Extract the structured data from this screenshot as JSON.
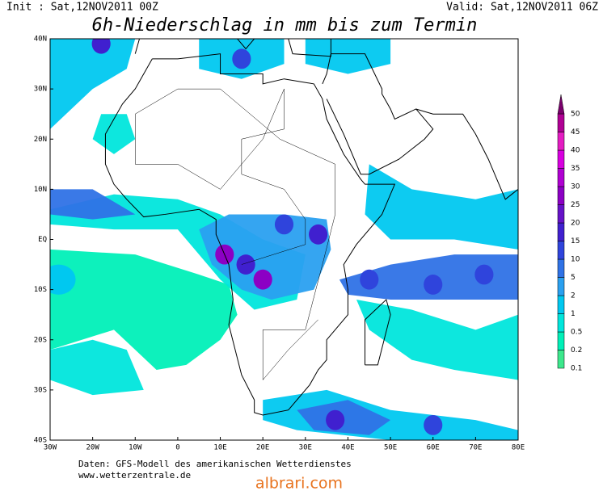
{
  "header": {
    "init": "Init : Sat,12NOV2011 00Z",
    "valid": "Valid: Sat,12NOV2011 06Z",
    "title": "6h-Niederschlag in mm bis zum Termin"
  },
  "map": {
    "y_labels": [
      "40N",
      "30N",
      "20N",
      "10N",
      "EQ",
      "10S",
      "20S",
      "30S",
      "40S"
    ],
    "x_labels": [
      "30W",
      "20W",
      "10W",
      "0",
      "10E",
      "20E",
      "30E",
      "40E",
      "50E",
      "60E",
      "70E",
      "80E"
    ]
  },
  "colorbar": {
    "levels": [
      0.1,
      0.2,
      0.5,
      1,
      2,
      5,
      10,
      15,
      20,
      25,
      30,
      35,
      40,
      45,
      50
    ],
    "colors": [
      "#3ce88c",
      "#00f0b8",
      "#00e6dc",
      "#00c8f0",
      "#2aa0f0",
      "#2f72e6",
      "#2f44dc",
      "#4020cf",
      "#6612c8",
      "#8c00c4",
      "#b000d2",
      "#d800e0",
      "#e41cc2",
      "#b00094",
      "#7a006c"
    ]
  },
  "footer": {
    "source": "Daten: GFS-Modell des amerikanischen Wetterdienstes",
    "url": "www.wetterzentrale.de",
    "watermark": "albrari.com"
  }
}
